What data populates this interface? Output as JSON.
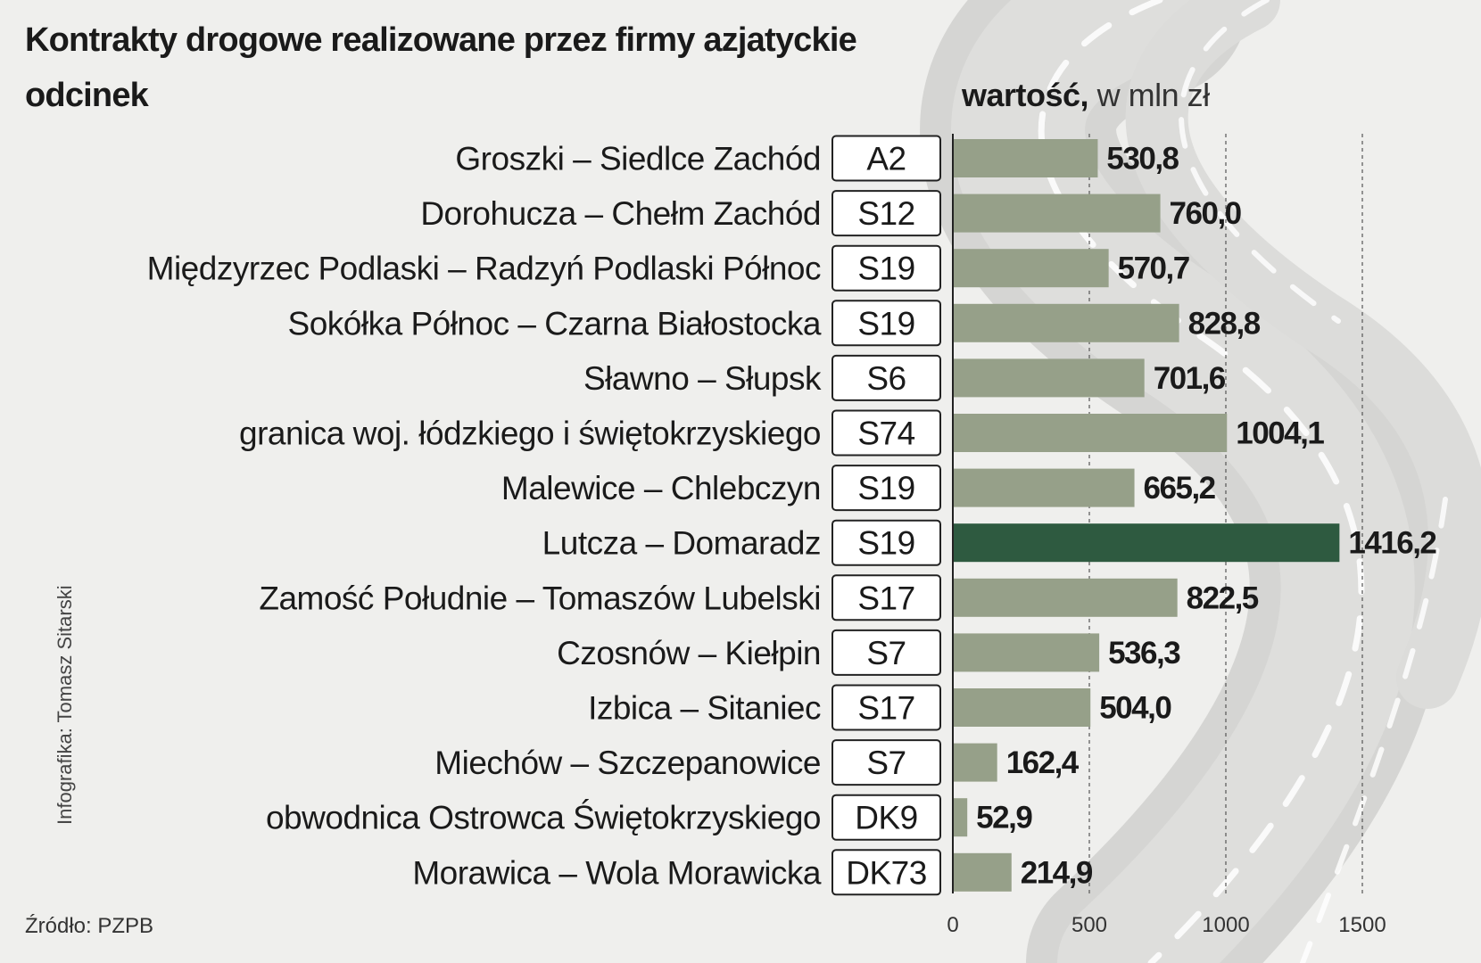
{
  "title": "Kontrakty drogowe realizowane przez firmy azjatyckie",
  "row_header": "odcinek",
  "value_header_bold": "wartość,",
  "value_header_unit": "w mln zł",
  "credit": "Infografika: Tomasz Sitarski",
  "source": "Źródło: PZPB",
  "colors": {
    "bar": "#96a089",
    "highlight": "#2e5a40",
    "road": "#d3d3d1",
    "background": "#efefed"
  },
  "chart_data": {
    "type": "bar",
    "orientation": "horizontal",
    "title": "Kontrakty drogowe realizowane przez firmy azjatyckie",
    "xlim": [
      0,
      1500
    ],
    "xticks": [
      "0",
      "500",
      "1000",
      "1500"
    ],
    "grid": true,
    "categories": [
      "Groszki – Siedlce Zachód",
      "Dorohucza – Chełm Zachód",
      "Międzyrzec Podlaski – Radzyń Podlaski Północ",
      "Sokółka Północ – Czarna Białostocka",
      "Sławno – Słupsk",
      "granica woj. łódzkiego i świętokrzyskiego",
      "Malewice – Chlebczyn",
      "Lutcza – Domaradz",
      "Zamość Południe – Tomaszów Lubelski",
      "Czosnów – Kiełpin",
      "Izbica – Sitaniec",
      "Miechów – Szczepanowice",
      "obwodnica Ostrowca Świętokrzyskiego",
      "Morawica – Wola Morawicka"
    ],
    "roads": [
      "A2",
      "S12",
      "S19",
      "S19",
      "S6",
      "S74",
      "S19",
      "S19",
      "S17",
      "S7",
      "S17",
      "S7",
      "DK9",
      "DK73"
    ],
    "values": [
      530.8,
      760.0,
      570.7,
      828.8,
      701.6,
      1004.1,
      665.2,
      1416.2,
      822.5,
      536.3,
      504.0,
      162.4,
      52.9,
      214.9
    ],
    "value_labels": [
      "530,8",
      "760,0",
      "570,7",
      "828,8",
      "701,6",
      "1004,1",
      "665,2",
      "1416,2",
      "822,5",
      "536,3",
      "504,0",
      "162,4",
      "52,9",
      "214,9"
    ],
    "highlight_index": 7
  }
}
